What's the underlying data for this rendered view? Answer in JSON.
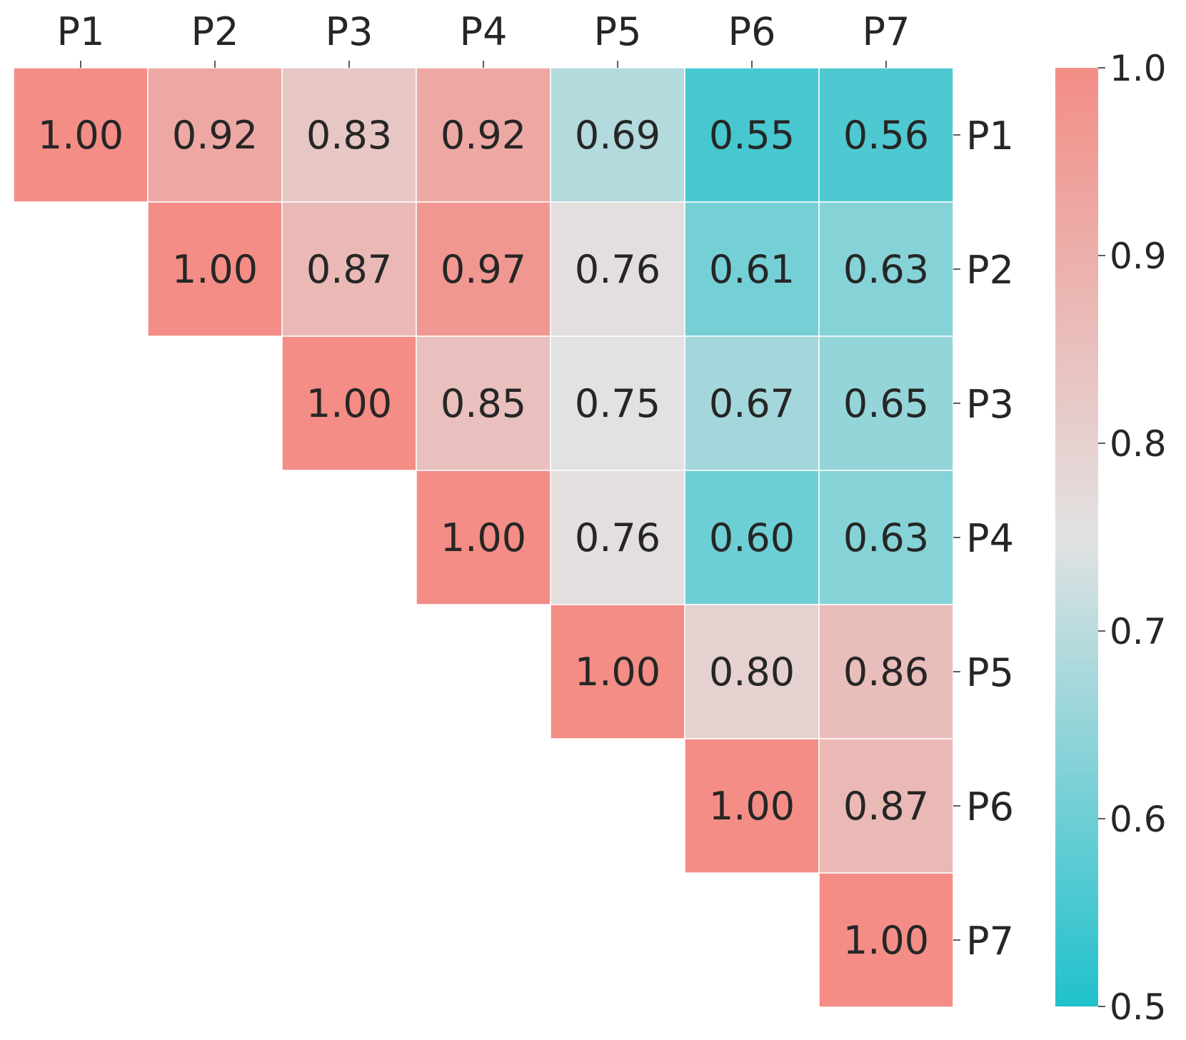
{
  "chart_data": {
    "type": "heatmap",
    "title": "",
    "xlabel": "",
    "ylabel": "",
    "x_labels": [
      "P1",
      "P2",
      "P3",
      "P4",
      "P5",
      "P6",
      "P7"
    ],
    "y_labels": [
      "P1",
      "P2",
      "P3",
      "P4",
      "P5",
      "P6",
      "P7"
    ],
    "mask": "lower-triangle",
    "values": [
      [
        1.0,
        0.92,
        0.83,
        0.92,
        0.69,
        0.55,
        0.56
      ],
      [
        null,
        1.0,
        0.87,
        0.97,
        0.76,
        0.61,
        0.63
      ],
      [
        null,
        null,
        1.0,
        0.85,
        0.75,
        0.67,
        0.65
      ],
      [
        null,
        null,
        null,
        1.0,
        0.76,
        0.6,
        0.63
      ],
      [
        null,
        null,
        null,
        null,
        1.0,
        0.8,
        0.86
      ],
      [
        null,
        null,
        null,
        null,
        null,
        1.0,
        0.87
      ],
      [
        null,
        null,
        null,
        null,
        null,
        null,
        1.0
      ]
    ],
    "value_format": "0.00",
    "x_axis_position": "top",
    "y_axis_position": "right",
    "colorbar": {
      "vmin": 0.5,
      "vmax": 1.0,
      "ticks": [
        1.0,
        0.9,
        0.8,
        0.7,
        0.6,
        0.5
      ],
      "tick_labels": [
        "1.0",
        "0.9",
        "0.8",
        "0.7",
        "0.6",
        "0.5"
      ],
      "colors": [
        "#20c1cc",
        "#e2e2e2",
        "#f38d86"
      ]
    },
    "grid": false
  }
}
